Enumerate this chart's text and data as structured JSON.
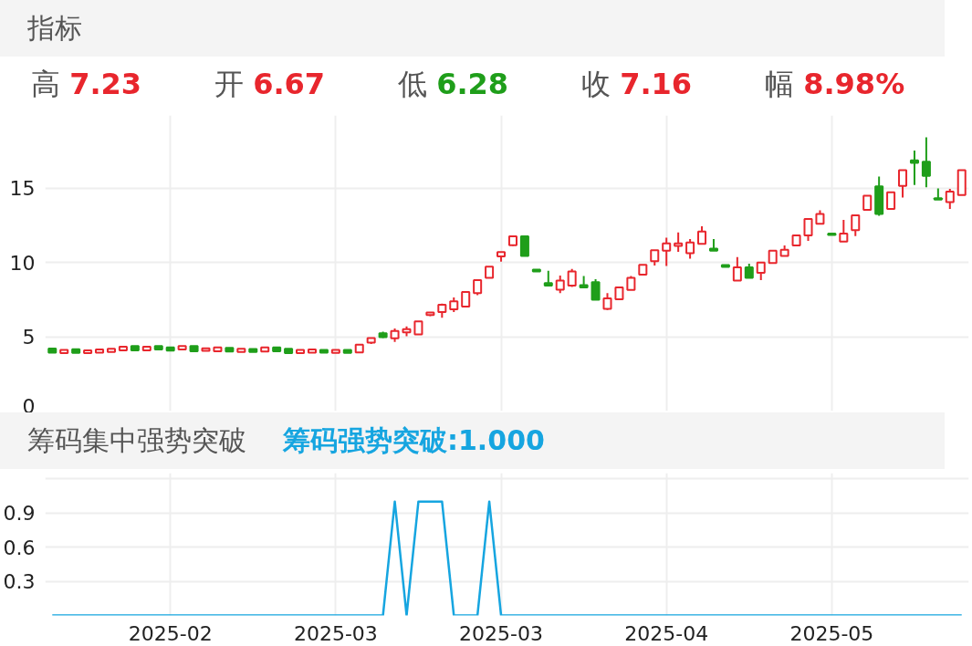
{
  "chart_data": [
    {
      "type": "candlestick",
      "title": "指标",
      "annotations": [
        "高 7.23",
        "开 6.67",
        "低 6.28",
        "收 7.16",
        "幅 8.98%"
      ],
      "categories": [
        null,
        null,
        null,
        null,
        null,
        null,
        null,
        null,
        null,
        null,
        "2025-02",
        null,
        null,
        null,
        null,
        null,
        null,
        null,
        null,
        null,
        null,
        null,
        null,
        null,
        "2025-03",
        null,
        null,
        null,
        null,
        null,
        null,
        null,
        null,
        null,
        null,
        null,
        null,
        null,
        "2025-03",
        null,
        null,
        null,
        null,
        null,
        null,
        null,
        null,
        null,
        null,
        null,
        null,
        null,
        "2025-04",
        null,
        null,
        null,
        null,
        null,
        null,
        null,
        null,
        null,
        null,
        null,
        null,
        null,
        "2025-05",
        null,
        null,
        null,
        null,
        null,
        null,
        null,
        null,
        null,
        null,
        null
      ],
      "ohlc": [
        [
          4.21,
          4.21,
          3.93,
          3.93
        ],
        [
          3.9,
          4.11,
          3.9,
          4.11
        ],
        [
          4.16,
          4.16,
          3.91,
          3.91
        ],
        [
          3.9,
          4.08,
          3.9,
          4.08
        ],
        [
          3.93,
          4.14,
          3.93,
          4.14
        ],
        [
          3.98,
          4.19,
          3.98,
          4.19
        ],
        [
          4.08,
          4.33,
          4.08,
          4.33
        ],
        [
          4.37,
          4.37,
          4.08,
          4.08
        ],
        [
          4.08,
          4.33,
          4.08,
          4.33
        ],
        [
          4.37,
          4.37,
          4.14,
          4.14
        ],
        [
          4.28,
          4.28,
          4.07,
          4.07
        ],
        [
          4.14,
          4.38,
          4.14,
          4.38
        ],
        [
          4.38,
          4.38,
          4.03,
          4.03
        ],
        [
          4.05,
          4.23,
          4.05,
          4.23
        ],
        [
          4.03,
          4.28,
          4.03,
          4.28
        ],
        [
          4.26,
          4.26,
          4.01,
          4.01
        ],
        [
          3.98,
          4.19,
          3.98,
          4.19
        ],
        [
          4.17,
          4.17,
          3.98,
          3.98
        ],
        [
          4.01,
          4.28,
          4.01,
          4.28
        ],
        [
          4.28,
          4.28,
          4.03,
          4.03
        ],
        [
          4.19,
          4.19,
          3.9,
          3.9
        ],
        [
          3.9,
          4.12,
          3.9,
          4.12
        ],
        [
          3.93,
          4.14,
          3.93,
          4.14
        ],
        [
          4.12,
          4.12,
          3.93,
          3.93
        ],
        [
          3.91,
          4.12,
          3.91,
          4.12
        ],
        [
          4.12,
          4.12,
          3.91,
          3.91
        ],
        [
          3.95,
          4.47,
          3.95,
          4.47
        ],
        [
          4.6,
          4.91,
          4.51,
          4.91
        ],
        [
          5.23,
          5.34,
          4.91,
          4.98
        ],
        [
          4.9,
          5.56,
          4.65,
          5.39
        ],
        [
          5.3,
          5.69,
          5.03,
          5.51
        ],
        [
          5.16,
          6.04,
          5.16,
          6.04
        ],
        [
          6.46,
          6.64,
          6.39,
          6.64
        ],
        [
          6.67,
          7.23,
          6.28,
          7.16
        ],
        [
          6.85,
          7.64,
          6.66,
          7.38
        ],
        [
          7.04,
          8.01,
          7.04,
          8.01
        ],
        [
          7.94,
          8.82,
          7.8,
          8.82
        ],
        [
          8.96,
          9.72,
          8.96,
          9.72
        ],
        [
          10.41,
          10.71,
          10.05,
          10.71
        ],
        [
          11.16,
          11.76,
          11.11,
          11.76
        ],
        [
          11.76,
          11.76,
          10.44,
          10.44
        ],
        [
          9.52,
          9.52,
          9.39,
          9.39
        ],
        [
          8.61,
          9.44,
          8.44,
          8.44
        ],
        [
          8.17,
          9.12,
          7.94,
          8.78
        ],
        [
          8.44,
          9.56,
          8.35,
          9.4
        ],
        [
          8.47,
          9.09,
          8.33,
          8.33
        ],
        [
          8.68,
          8.87,
          7.5,
          7.5
        ],
        [
          6.88,
          7.94,
          6.8,
          7.59
        ],
        [
          7.52,
          8.33,
          7.52,
          8.33
        ],
        [
          8.15,
          9.09,
          8.15,
          8.96
        ],
        [
          9.18,
          9.84,
          9.18,
          9.84
        ],
        [
          10.09,
          10.83,
          9.79,
          10.83
        ],
        [
          10.79,
          11.67,
          9.76,
          11.29
        ],
        [
          11.11,
          12.03,
          10.72,
          11.29
        ],
        [
          10.62,
          11.58,
          10.26,
          11.34
        ],
        [
          11.25,
          12.43,
          11.25,
          12.08
        ],
        [
          10.94,
          11.58,
          10.79,
          10.79
        ],
        [
          9.83,
          9.83,
          9.7,
          9.7
        ],
        [
          8.79,
          10.37,
          8.79,
          9.67
        ],
        [
          9.67,
          9.92,
          8.96,
          8.96
        ],
        [
          9.31,
          10.0,
          8.82,
          10.0
        ],
        [
          9.97,
          10.79,
          9.97,
          10.79
        ],
        [
          10.44,
          11.15,
          10.44,
          10.85
        ],
        [
          11.15,
          11.82,
          11.08,
          11.82
        ],
        [
          11.82,
          12.93,
          11.46,
          12.93
        ],
        [
          12.61,
          13.52,
          12.61,
          13.26
        ],
        [
          11.94,
          11.94,
          11.85,
          11.85
        ],
        [
          11.41,
          12.87,
          11.41,
          11.94
        ],
        [
          12.17,
          13.17,
          11.78,
          13.17
        ],
        [
          13.54,
          14.49,
          13.54,
          14.49
        ],
        [
          15.12,
          15.78,
          13.14,
          13.26
        ],
        [
          13.61,
          14.72,
          13.61,
          14.72
        ],
        [
          15.16,
          16.22,
          14.37,
          16.22
        ],
        [
          16.87,
          17.54,
          15.21,
          16.71
        ],
        [
          16.78,
          18.42,
          15.07,
          15.83
        ],
        [
          14.32,
          14.99,
          14.23,
          14.23
        ],
        [
          14.07,
          14.95,
          13.61,
          14.77
        ],
        [
          14.54,
          16.22,
          14.54,
          16.22
        ]
      ],
      "colors": [
        "#1f9e1a",
        "#e8262d",
        "#1f9e1a",
        "#e8262d",
        "#e8262d",
        "#e8262d",
        "#e8262d",
        "#1f9e1a",
        "#e8262d",
        "#1f9e1a",
        "#1f9e1a",
        "#e8262d",
        "#1f9e1a",
        "#e8262d",
        "#e8262d",
        "#1f9e1a",
        "#e8262d",
        "#1f9e1a",
        "#e8262d",
        "#1f9e1a",
        "#1f9e1a",
        "#e8262d",
        "#e8262d",
        "#1f9e1a",
        "#e8262d",
        "#1f9e1a",
        "#e8262d",
        "#e8262d",
        "#1f9e1a",
        "#e8262d",
        "#e8262d",
        "#e8262d",
        "#e8262d",
        "#e8262d",
        "#e8262d",
        "#e8262d",
        "#e8262d",
        "#e8262d",
        "#e8262d",
        "#e8262d",
        "#1f9e1a",
        "#1f9e1a",
        "#1f9e1a",
        "#e8262d",
        "#e8262d",
        "#1f9e1a",
        "#1f9e1a",
        "#e8262d",
        "#e8262d",
        "#e8262d",
        "#e8262d",
        "#e8262d",
        "#e8262d",
        "#e8262d",
        "#e8262d",
        "#e8262d",
        "#1f9e1a",
        "#1f9e1a",
        "#e8262d",
        "#1f9e1a",
        "#e8262d",
        "#e8262d",
        "#e8262d",
        "#e8262d",
        "#e8262d",
        "#e8262d",
        "#1f9e1a",
        "#e8262d",
        "#e8262d",
        "#e8262d",
        "#1f9e1a",
        "#e8262d",
        "#e8262d",
        "#1f9e1a",
        "#1f9e1a",
        "#1f9e1a",
        "#e8262d",
        "#e8262d"
      ],
      "ylim": [
        0,
        19.9
      ],
      "yticks": [
        0,
        5,
        10,
        15
      ],
      "grid": true,
      "tick_labels": "y"
    },
    {
      "type": "line",
      "title": "筹码集中强势突破",
      "subtitle": "筹码强势突破:1.000",
      "categories": [
        null,
        null,
        null,
        null,
        null,
        null,
        null,
        null,
        null,
        null,
        "2025-02",
        null,
        null,
        null,
        null,
        null,
        null,
        null,
        null,
        null,
        null,
        null,
        null,
        null,
        "2025-03",
        null,
        null,
        null,
        null,
        null,
        null,
        null,
        null,
        null,
        null,
        null,
        null,
        null,
        "2025-03",
        null,
        null,
        null,
        null,
        null,
        null,
        null,
        null,
        null,
        null,
        null,
        null,
        null,
        "2025-04",
        null,
        null,
        null,
        null,
        null,
        null,
        null,
        null,
        null,
        null,
        null,
        null,
        null,
        "2025-05",
        null,
        null,
        null,
        null,
        null,
        null,
        null,
        null,
        null,
        null,
        null
      ],
      "series": [
        {
          "color": "#16a5e0",
          "values": [
            0,
            0,
            0,
            0,
            0,
            0,
            0,
            0,
            0,
            0,
            0,
            0,
            0,
            0,
            0,
            0,
            0,
            0,
            0,
            0,
            0,
            0,
            0,
            0,
            0,
            0,
            0,
            0,
            0,
            1,
            0,
            1,
            1,
            1,
            0,
            0,
            0,
            1,
            0,
            0,
            0,
            0,
            0,
            0,
            0,
            0,
            0,
            0,
            0,
            0,
            0,
            0,
            0,
            0,
            0,
            0,
            0,
            0,
            0,
            0,
            0,
            0,
            0,
            0,
            0,
            0,
            0,
            0,
            0,
            0,
            0,
            0,
            0,
            0,
            0,
            0,
            0,
            0
          ]
        }
      ],
      "ylim": [
        0,
        1.25
      ],
      "yticks": [
        0.3,
        0.6,
        0.9,
        {
          "value": 1.2,
          "label": null
        }
      ],
      "grid": true
    }
  ]
}
